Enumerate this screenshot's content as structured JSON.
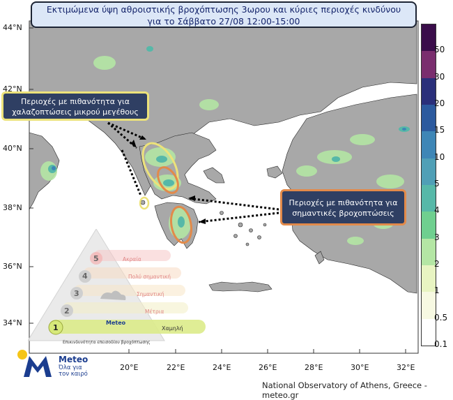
{
  "title": {
    "line1": "Εκτιμώμενα ύψη αθροιστικής βροχόπτωσης 3ωρου και κύριες περιοχές κινδύνου",
    "line2": "για το Σάββατο 27/08 12:00-15:00"
  },
  "callouts": {
    "hail": {
      "line1": "Περιοχές με πιθανότητα για",
      "line2": "χαλαζοπτώσεις μικρού μεγέθους"
    },
    "rain": {
      "line1": "Περιοχές με πιθανότητα για",
      "line2": "σημαντικές βροχοπτώσεις"
    }
  },
  "colors": {
    "land": "#a8a8a8",
    "sea": "#ffffff",
    "title_bg": "#dce7f7",
    "callout_bg": "#2f3f63",
    "hail_ring": "#ece27a",
    "rain_ring": "#e28a4a",
    "meteo_blue": "#1b3d8f",
    "meteo_yellow": "#f5c518"
  },
  "colorbar": {
    "labels": [
      "50",
      "30",
      "20",
      "15",
      "10",
      "5",
      "4",
      "3",
      "2",
      "1",
      "0.5",
      "0.1"
    ],
    "colors": [
      "#3a0d4a",
      "#7a2e6e",
      "#2a2f7a",
      "#2c5a9e",
      "#3e86b6",
      "#4f9fb6",
      "#56b8a8",
      "#6fcf8f",
      "#b4e6a4",
      "#e8f4c2",
      "#f7f9e2",
      "#ffffff"
    ]
  },
  "axes": {
    "latitudes": [
      "44°N",
      "42°N",
      "40°N",
      "38°N",
      "36°N",
      "34°N"
    ],
    "longitudes": [
      "20°E",
      "22°E",
      "24°E",
      "26°E",
      "28°E",
      "30°E",
      "32°E"
    ]
  },
  "pyramid": {
    "levels": [
      {
        "num": "5",
        "label": "Ακραία"
      },
      {
        "num": "4",
        "label": "Πολύ σημαντική"
      },
      {
        "num": "3",
        "label": "Σημαντική"
      },
      {
        "num": "2",
        "label": "Μέτρια"
      },
      {
        "num": "1",
        "label": "Χαμηλή"
      }
    ],
    "caption": "Επικινδυνότητα επεισοδίου βροχόπτωσης",
    "logo_text": "Meteo"
  },
  "logo": {
    "name": "Meteo",
    "tagline_1": "Όλα για",
    "tagline_2": "τον καιρό"
  },
  "credit": "National Observatory of Athens, Greece - meteo.gr"
}
